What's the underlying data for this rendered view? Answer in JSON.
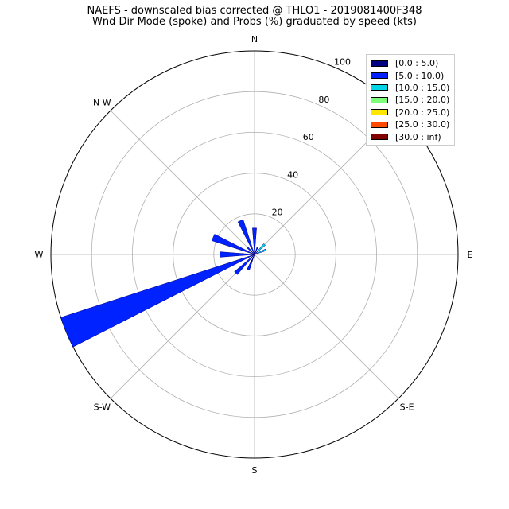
{
  "chart_data": {
    "type": "windrose",
    "title": "NAEFS - downscaled bias corrected @ THLO1 - 2019081400F348",
    "subtitle": "Wnd Dir Mode (spoke) and Probs (%) graduated by speed (kts)",
    "directions": [
      "N",
      "N-W",
      "W",
      "S-W",
      "S",
      "S-E",
      "E"
    ],
    "radial_ticks": [
      20,
      40,
      60,
      80,
      100
    ],
    "rmax": 100,
    "grid": true,
    "legend_position": "top-right",
    "speed_bins": [
      {
        "label": "[0.0 : 5.0)",
        "color": "#000080"
      },
      {
        "label": "[5.0 : 10.0)",
        "color": "#0022ff"
      },
      {
        "label": "[10.0 : 15.0)",
        "color": "#00d4e6"
      },
      {
        "label": "[15.0 : 20.0)",
        "color": "#7dff7a"
      },
      {
        "label": "[20.0 : 25.0)",
        "color": "#ffe600"
      },
      {
        "label": "[25.0 : 30.0)",
        "color": "#ff4a00"
      },
      {
        "label": "[30.0 : inf)",
        "color": "#800000"
      }
    ],
    "spokes": [
      {
        "direction_deg": 0,
        "segments": [
          {
            "bin": 0,
            "value": 1
          },
          {
            "bin": 1,
            "value": 12
          }
        ]
      },
      {
        "direction_deg": 22.5,
        "segments": [
          {
            "bin": 0,
            "value": 1
          },
          {
            "bin": 1,
            "value": 3
          }
        ]
      },
      {
        "direction_deg": 45,
        "segments": [
          {
            "bin": 1,
            "value": 2
          },
          {
            "bin": 2,
            "value": 5
          }
        ]
      },
      {
        "direction_deg": 67.5,
        "segments": [
          {
            "bin": 2,
            "value": 6
          }
        ]
      },
      {
        "direction_deg": 337.5,
        "segments": [
          {
            "bin": 0,
            "value": 1
          },
          {
            "bin": 1,
            "value": 17
          }
        ]
      },
      {
        "direction_deg": 315,
        "segments": [
          {
            "bin": 1,
            "value": 5
          }
        ]
      },
      {
        "direction_deg": 292.5,
        "segments": [
          {
            "bin": 0,
            "value": 1
          },
          {
            "bin": 1,
            "value": 21
          }
        ]
      },
      {
        "direction_deg": 270,
        "segments": [
          {
            "bin": 0,
            "value": 1
          },
          {
            "bin": 1,
            "value": 16
          }
        ]
      },
      {
        "direction_deg": 247.5,
        "segments": [
          {
            "bin": 0,
            "value": 1
          },
          {
            "bin": 1,
            "value": 99
          }
        ]
      },
      {
        "direction_deg": 225,
        "segments": [
          {
            "bin": 0,
            "value": 1
          },
          {
            "bin": 1,
            "value": 12
          }
        ]
      },
      {
        "direction_deg": 202.5,
        "segments": [
          {
            "bin": 0,
            "value": 4
          },
          {
            "bin": 1,
            "value": 4
          }
        ]
      }
    ]
  }
}
